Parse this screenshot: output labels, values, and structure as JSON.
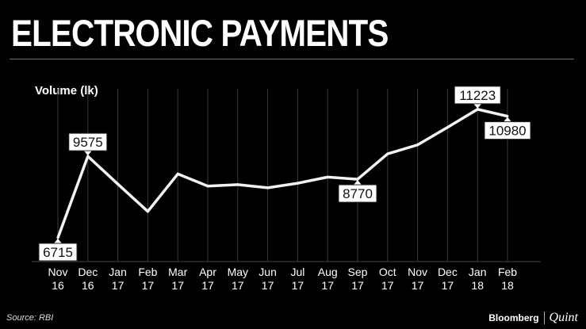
{
  "title": "ELECTRONIC PAYMENTS",
  "source": "Source: RBI",
  "brand": {
    "left": "Bloomberg",
    "right": "Quint"
  },
  "chart_data": {
    "type": "line",
    "ylabel": "Volume (lk)",
    "categories": [
      [
        "Nov",
        "16"
      ],
      [
        "Dec",
        "16"
      ],
      [
        "Jan",
        "17"
      ],
      [
        "Feb",
        "17"
      ],
      [
        "Mar",
        "17"
      ],
      [
        "Apr",
        "17"
      ],
      [
        "May",
        "17"
      ],
      [
        "Jun",
        "17"
      ],
      [
        "Jul",
        "17"
      ],
      [
        "Aug",
        "17"
      ],
      [
        "Sep",
        "17"
      ],
      [
        "Oct",
        "17"
      ],
      [
        "Nov",
        "17"
      ],
      [
        "Dec",
        "17"
      ],
      [
        "Jan",
        "18"
      ],
      [
        "Feb",
        "18"
      ]
    ],
    "values": [
      6715,
      9575,
      8600,
      7640,
      8955,
      8530,
      8580,
      8470,
      8630,
      8845,
      8770,
      9660,
      9975,
      10590,
      11223,
      10980
    ],
    "labels": [
      {
        "index": 0,
        "text": "6715",
        "position": "below"
      },
      {
        "index": 1,
        "text": "9575",
        "position": "above"
      },
      {
        "index": 10,
        "text": "8770",
        "position": "below"
      },
      {
        "index": 14,
        "text": "11223",
        "position": "above"
      },
      {
        "index": 15,
        "text": "10980",
        "position": "below"
      }
    ],
    "ylim": [
      5880,
      11720
    ],
    "grid": "vertical",
    "line_color": "#f2f2f2",
    "grid_color": "#3a3a3a"
  }
}
